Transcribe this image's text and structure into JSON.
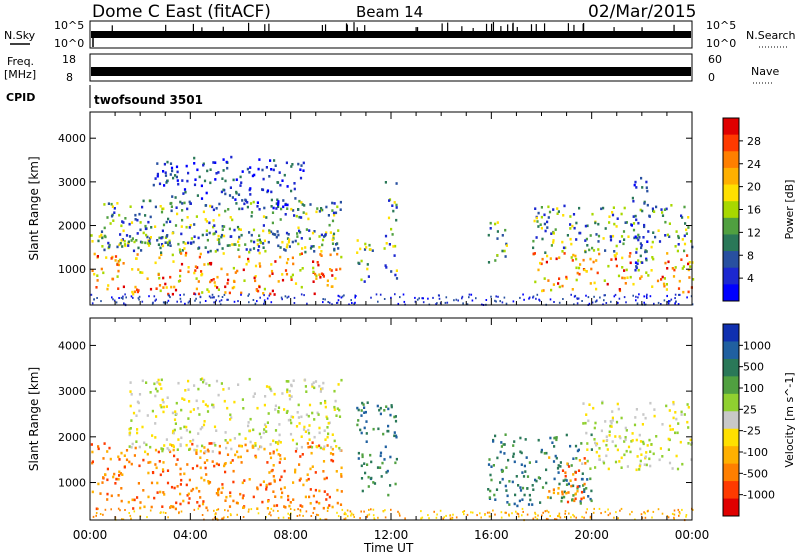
{
  "header": {
    "station": "Dome C East (fitACF)",
    "beam": "Beam 14",
    "date": "02/Mar/2015"
  },
  "top_panels": {
    "nsky_label": "N.Sky",
    "nsky_ticks": [
      "10^5",
      "10^0"
    ],
    "nsearch_label": "N.Search",
    "nsearch_ticks": [
      "10^5",
      "10^0"
    ],
    "freq_label": "Freq.",
    "freq_unit": "[MHz]",
    "freq_ticks": [
      "18",
      "8"
    ],
    "nave_label": "Nave",
    "nave_ticks": [
      "60",
      "0"
    ],
    "cpid_label": "CPID",
    "cpid_value": "twofsound 3501"
  },
  "chart_data": [
    {
      "type": "heatmap",
      "name": "power-panel",
      "ylabel": "Slant Range [km]",
      "y_ticks": [
        "4000",
        "3000",
        "2000",
        "1000"
      ],
      "y_tick_values": [
        4000,
        3000,
        2000,
        1000
      ],
      "ylim": [
        180,
        4600
      ],
      "xlim": [
        0,
        24
      ],
      "x_ticks": [
        "00:00",
        "04:00",
        "08:00",
        "12:00",
        "16:00",
        "20:00",
        "00:00"
      ],
      "colorbar": {
        "label": "Power [dB]",
        "ticks": [
          "28",
          "24",
          "20",
          "16",
          "12",
          "8",
          "4"
        ],
        "colors": [
          "#e00000",
          "#ff3a00",
          "#ff7f00",
          "#ffb000",
          "#ffe000",
          "#a8d800",
          "#50a040",
          "#2a7858",
          "#2850a0",
          "#1c28d0",
          "#0000ff"
        ]
      },
      "echo_regions": [
        {
          "t0": 0.0,
          "t1": 10.0,
          "r0": 450,
          "r1": 1900,
          "level": "high"
        },
        {
          "t0": 0.5,
          "t1": 10.0,
          "r0": 1500,
          "r1": 2600,
          "level": "mid"
        },
        {
          "t0": 2.5,
          "t1": 8.5,
          "r0": 2400,
          "r1": 3600,
          "level": "low"
        },
        {
          "t0": 10.6,
          "t1": 11.4,
          "r0": 700,
          "r1": 1700,
          "level": "mid"
        },
        {
          "t0": 11.7,
          "t1": 12.2,
          "r0": 800,
          "r1": 3100,
          "level": "mid"
        },
        {
          "t0": 15.8,
          "t1": 16.6,
          "r0": 1100,
          "r1": 2100,
          "level": "mid"
        },
        {
          "t0": 17.6,
          "t1": 24.0,
          "r0": 500,
          "r1": 2500,
          "level": "high"
        },
        {
          "t0": 21.5,
          "t1": 22.2,
          "r0": 1000,
          "r1": 3200,
          "level": "low"
        }
      ]
    },
    {
      "type": "heatmap",
      "name": "velocity-panel",
      "ylabel": "Slant Range [km]",
      "y_ticks": [
        "4000",
        "3000",
        "2000",
        "1000"
      ],
      "y_tick_values": [
        4000,
        3000,
        2000,
        1000
      ],
      "ylim": [
        180,
        4600
      ],
      "xlim": [
        0,
        24
      ],
      "x_ticks": [
        "00:00",
        "04:00",
        "08:00",
        "12:00",
        "16:00",
        "20:00",
        "00:00"
      ],
      "xlabel": "Time UT",
      "colorbar": {
        "label": "Velocity [m s^-1]",
        "ticks": [
          "1000",
          "500",
          "100",
          "25",
          "-25",
          "-100",
          "-500",
          "-1000"
        ],
        "colors": [
          "#1030b0",
          "#2060a0",
          "#2a7858",
          "#50a040",
          "#90d030",
          "#c8c8c8",
          "#ffe000",
          "#ffb000",
          "#ff7f00",
          "#ff3a00",
          "#e00000"
        ]
      },
      "echo_regions": [
        {
          "t0": 0.0,
          "t1": 10.0,
          "r0": 450,
          "r1": 1900,
          "level": "neg"
        },
        {
          "t0": 1.5,
          "t1": 10.0,
          "r0": 1700,
          "r1": 3300,
          "level": "zero"
        },
        {
          "t0": 10.6,
          "t1": 12.2,
          "r0": 700,
          "r1": 2800,
          "level": "pos"
        },
        {
          "t0": 15.8,
          "t1": 20.0,
          "r0": 500,
          "r1": 2100,
          "level": "pos"
        },
        {
          "t0": 18.2,
          "t1": 19.8,
          "r0": 600,
          "r1": 1600,
          "level": "neg"
        },
        {
          "t0": 19.5,
          "t1": 24.0,
          "r0": 1300,
          "r1": 2800,
          "level": "zero"
        }
      ]
    }
  ]
}
